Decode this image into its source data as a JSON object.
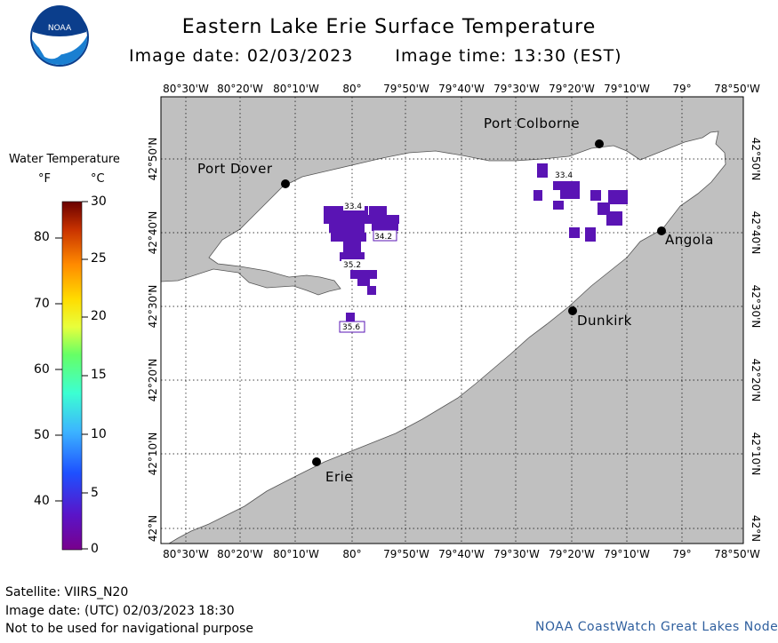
{
  "title": "Eastern Lake Erie Surface Temperature",
  "image_date": "Image date: 02/03/2023",
  "image_time": "Image time: 13:30 (EST)",
  "logo": {
    "text": "NOAA",
    "colors": [
      "#1a7fd1",
      "#0b3e8c",
      "#ffffff"
    ]
  },
  "legend": {
    "title": "Water Temperature",
    "unit_f": "°F",
    "unit_c": "°C",
    "fahrenheit_ticks": [
      "80",
      "70",
      "60",
      "50",
      "40"
    ],
    "celsius_ticks": [
      "30",
      "25",
      "20",
      "15",
      "10",
      "5",
      "0"
    ],
    "gradient": [
      "#6a0000",
      "#c83200",
      "#ff8a00",
      "#ffdc00",
      "#e8ff3c",
      "#66ff66",
      "#3cffd2",
      "#3cb4ff",
      "#1e50ff",
      "#5a14c8",
      "#78008c"
    ]
  },
  "map": {
    "lon_labels": [
      "80°30'W",
      "80°20'W",
      "80°10'W",
      "80°",
      "79°50'W",
      "79°40'W",
      "79°30'W",
      "79°20'W",
      "79°10'W",
      "79°",
      "78°50'W"
    ],
    "lat_labels": [
      "42°N",
      "42°10'N",
      "42°20'N",
      "42°30'N",
      "42°40'N",
      "42°50'N"
    ],
    "places": [
      "Port Colborne",
      "Port Dover",
      "Angola",
      "Dunkirk",
      "Erie"
    ],
    "temperature_labels": [
      "33.4",
      "34.2",
      "35.2",
      "35.6",
      "33.4"
    ],
    "land_color": "#c0c0c0",
    "water_color": "#ffffff",
    "ice_color": "#5a14b4"
  },
  "footer": {
    "satellite": "Satellite: VIIRS_N20",
    "utc_date": "Image date: (UTC) 02/03/2023  18:30",
    "disclaimer": "Not to be used for navigational purpose",
    "node": "NOAA CoastWatch Great Lakes Node"
  }
}
